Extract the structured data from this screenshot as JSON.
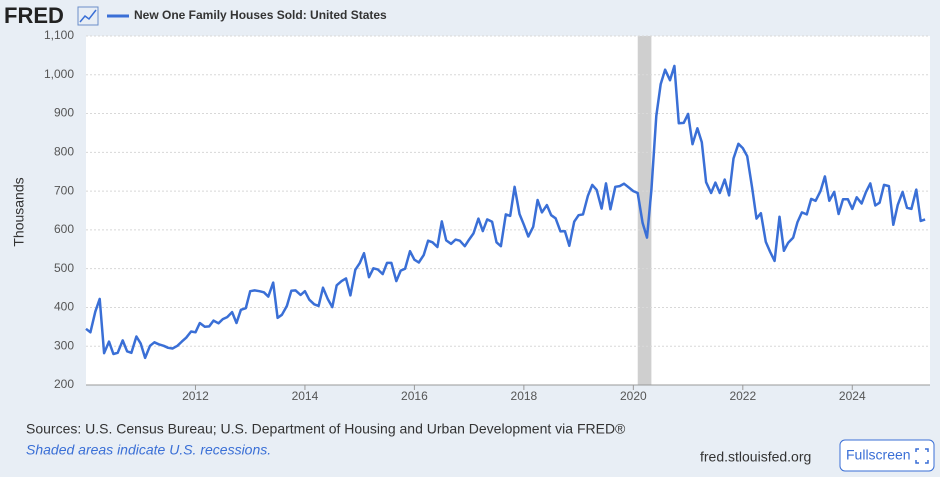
{
  "chart_data": {
    "type": "line",
    "logo": "FRED",
    "ylabel": "Thousands",
    "sources": "Sources: U.S. Census Bureau; U.S. Department of Housing and Urban Development via FRED®",
    "note": "Shaded areas indicate U.S. recessions.",
    "site": "fred.stlouisfed.org",
    "button": "Fullscreen",
    "xlim": [
      2010,
      2025.42
    ],
    "xticks": [
      2012,
      2014,
      2016,
      2018,
      2020,
      2022,
      2024
    ],
    "ylim": [
      200,
      1100
    ],
    "yticks": [
      200,
      300,
      400,
      500,
      600,
      700,
      800,
      900,
      {
        "value": 1000,
        "label": "1,000"
      },
      {
        "value": 1100,
        "label": "1,100"
      }
    ],
    "grid": true,
    "recessions": [
      [
        2020.08,
        2020.33
      ]
    ],
    "x": [
      2010.0,
      2010.08,
      2010.17,
      2010.25,
      2010.33,
      2010.42,
      2010.5,
      2010.58,
      2010.67,
      2010.75,
      2010.83,
      2010.92,
      2011.0,
      2011.08,
      2011.17,
      2011.25,
      2011.33,
      2011.42,
      2011.5,
      2011.58,
      2011.67,
      2011.75,
      2011.83,
      2011.92,
      2012.0,
      2012.08,
      2012.17,
      2012.25,
      2012.33,
      2012.42,
      2012.5,
      2012.58,
      2012.67,
      2012.75,
      2012.83,
      2012.92,
      2013.0,
      2013.08,
      2013.17,
      2013.25,
      2013.33,
      2013.42,
      2013.5,
      2013.58,
      2013.67,
      2013.75,
      2013.83,
      2013.92,
      2014.0,
      2014.08,
      2014.17,
      2014.25,
      2014.33,
      2014.42,
      2014.5,
      2014.58,
      2014.67,
      2014.75,
      2014.83,
      2014.92,
      2015.0,
      2015.08,
      2015.17,
      2015.25,
      2015.33,
      2015.42,
      2015.5,
      2015.58,
      2015.67,
      2015.75,
      2015.83,
      2015.92,
      2016.0,
      2016.08,
      2016.17,
      2016.25,
      2016.33,
      2016.42,
      2016.5,
      2016.58,
      2016.67,
      2016.75,
      2016.83,
      2016.92,
      2017.0,
      2017.08,
      2017.17,
      2017.25,
      2017.33,
      2017.42,
      2017.5,
      2017.58,
      2017.67,
      2017.75,
      2017.83,
      2017.92,
      2018.0,
      2018.08,
      2018.17,
      2018.25,
      2018.33,
      2018.42,
      2018.5,
      2018.58,
      2018.67,
      2018.75,
      2018.83,
      2018.92,
      2019.0,
      2019.08,
      2019.17,
      2019.25,
      2019.33,
      2019.42,
      2019.5,
      2019.58,
      2019.67,
      2019.75,
      2019.83,
      2019.92,
      2020.0,
      2020.08,
      2020.17,
      2020.25,
      2020.33,
      2020.42,
      2020.5,
      2020.58,
      2020.67,
      2020.75,
      2020.83,
      2020.92,
      2021.0,
      2021.08,
      2021.17,
      2021.25,
      2021.33,
      2021.42,
      2021.5,
      2021.58,
      2021.67,
      2021.75,
      2021.83,
      2021.92,
      2022.0,
      2022.08,
      2022.17,
      2022.25,
      2022.33,
      2022.42,
      2022.5,
      2022.58,
      2022.67,
      2022.75,
      2022.83,
      2022.92,
      2023.0,
      2023.08,
      2023.17,
      2023.25,
      2023.33,
      2023.42,
      2023.5,
      2023.58,
      2023.67,
      2023.75,
      2023.83,
      2023.92,
      2024.0,
      2024.08,
      2024.17,
      2024.25,
      2024.33,
      2024.42,
      2024.5,
      2024.58,
      2024.67,
      2024.75,
      2024.83,
      2024.92,
      2025.0,
      2025.08,
      2025.17,
      2025.25,
      2025.33
    ],
    "series": [
      {
        "name": "New One Family Houses Sold: United States",
        "color": "#3a6fd6",
        "values": [
          345,
          336,
          389,
          422,
          282,
          312,
          280,
          283,
          315,
          287,
          283,
          325,
          307,
          270,
          301,
          310,
          305,
          301,
          296,
          294,
          301,
          312,
          322,
          338,
          336,
          360,
          350,
          351,
          366,
          359,
          370,
          375,
          388,
          360,
          394,
          398,
          442,
          444,
          442,
          439,
          428,
          464,
          373,
          381,
          404,
          443,
          444,
          432,
          442,
          420,
          408,
          404,
          451,
          421,
          401,
          457,
          468,
          475,
          431,
          497,
          514,
          540,
          478,
          501,
          498,
          486,
          515,
          515,
          468,
          495,
          500,
          545,
          523,
          516,
          535,
          572,
          568,
          556,
          622,
          573,
          564,
          575,
          572,
          558,
          575,
          591,
          629,
          597,
          627,
          621,
          568,
          558,
          640,
          636,
          711,
          641,
          613,
          583,
          608,
          677,
          645,
          664,
          638,
          630,
          596,
          597,
          559,
          621,
          638,
          640,
          688,
          716,
          703,
          655,
          720,
          653,
          711,
          713,
          719,
          709,
          700,
          695,
          618,
          580,
          703,
          894,
          976,
          1013,
          986,
          1023,
          875,
          876,
          899,
          821,
          862,
          826,
          723,
          695,
          722,
          695,
          730,
          689,
          784,
          822,
          811,
          790,
          709,
          629,
          643,
          569,
          543,
          520,
          634,
          546,
          567,
          580,
          620,
          645,
          640,
          680,
          675,
          700,
          738,
          675,
          698,
          641,
          679,
          679,
          654,
          684,
          668,
          698,
          720,
          663,
          670,
          716,
          713,
          613,
          664,
          698,
          657,
          654,
          704,
          623,
          627
        ]
      }
    ]
  }
}
